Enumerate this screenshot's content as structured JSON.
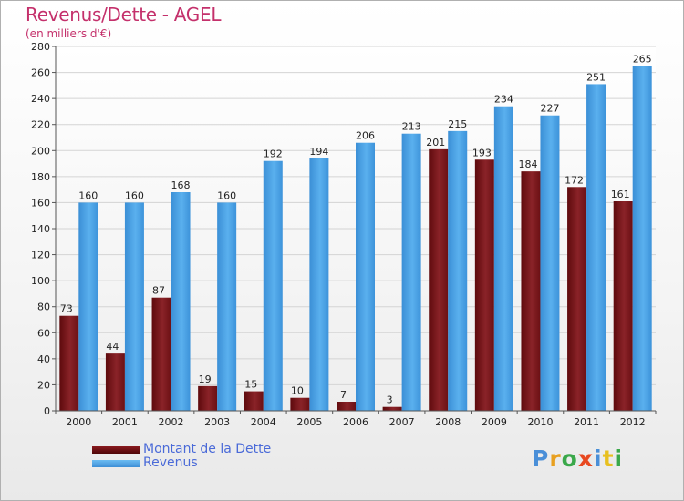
{
  "title": "Revenus/Dette - AGEL",
  "subtitle": "(en milliers d'€)",
  "colors": {
    "debt": "#7a1a1e",
    "revenue": "#4aa3e6",
    "title": "#c4306b",
    "legend_text": "#4a6ad8"
  },
  "chart_data": {
    "type": "bar",
    "categories": [
      "2000",
      "2001",
      "2002",
      "2003",
      "2004",
      "2005",
      "2006",
      "2007",
      "2008",
      "2009",
      "2010",
      "2011",
      "2012"
    ],
    "series": [
      {
        "name": "Montant de la Dette",
        "values": [
          73,
          44,
          87,
          19,
          15,
          10,
          7,
          3,
          201,
          193,
          184,
          172,
          161
        ]
      },
      {
        "name": "Revenus",
        "values": [
          160,
          160,
          168,
          160,
          192,
          194,
          206,
          213,
          215,
          234,
          227,
          251,
          265
        ]
      }
    ],
    "ylim": [
      0,
      280
    ],
    "yticks": [
      0,
      20,
      40,
      60,
      80,
      100,
      120,
      140,
      160,
      180,
      200,
      220,
      240,
      260,
      280
    ],
    "grid": true,
    "legend": "bottom-left"
  },
  "legend": {
    "items": [
      {
        "label": "Montant de la Dette",
        "color": "#6b0d10"
      },
      {
        "label": "Revenus",
        "color": "#4aa3e6"
      }
    ]
  },
  "logo": {
    "letters": [
      "P",
      "r",
      "o",
      "x",
      "i",
      "t",
      "i"
    ],
    "colors": [
      "#4a8fd8",
      "#e8a020",
      "#3aa84a",
      "#e84820",
      "#4a8fd8",
      "#e8c020",
      "#3aa84a"
    ]
  }
}
